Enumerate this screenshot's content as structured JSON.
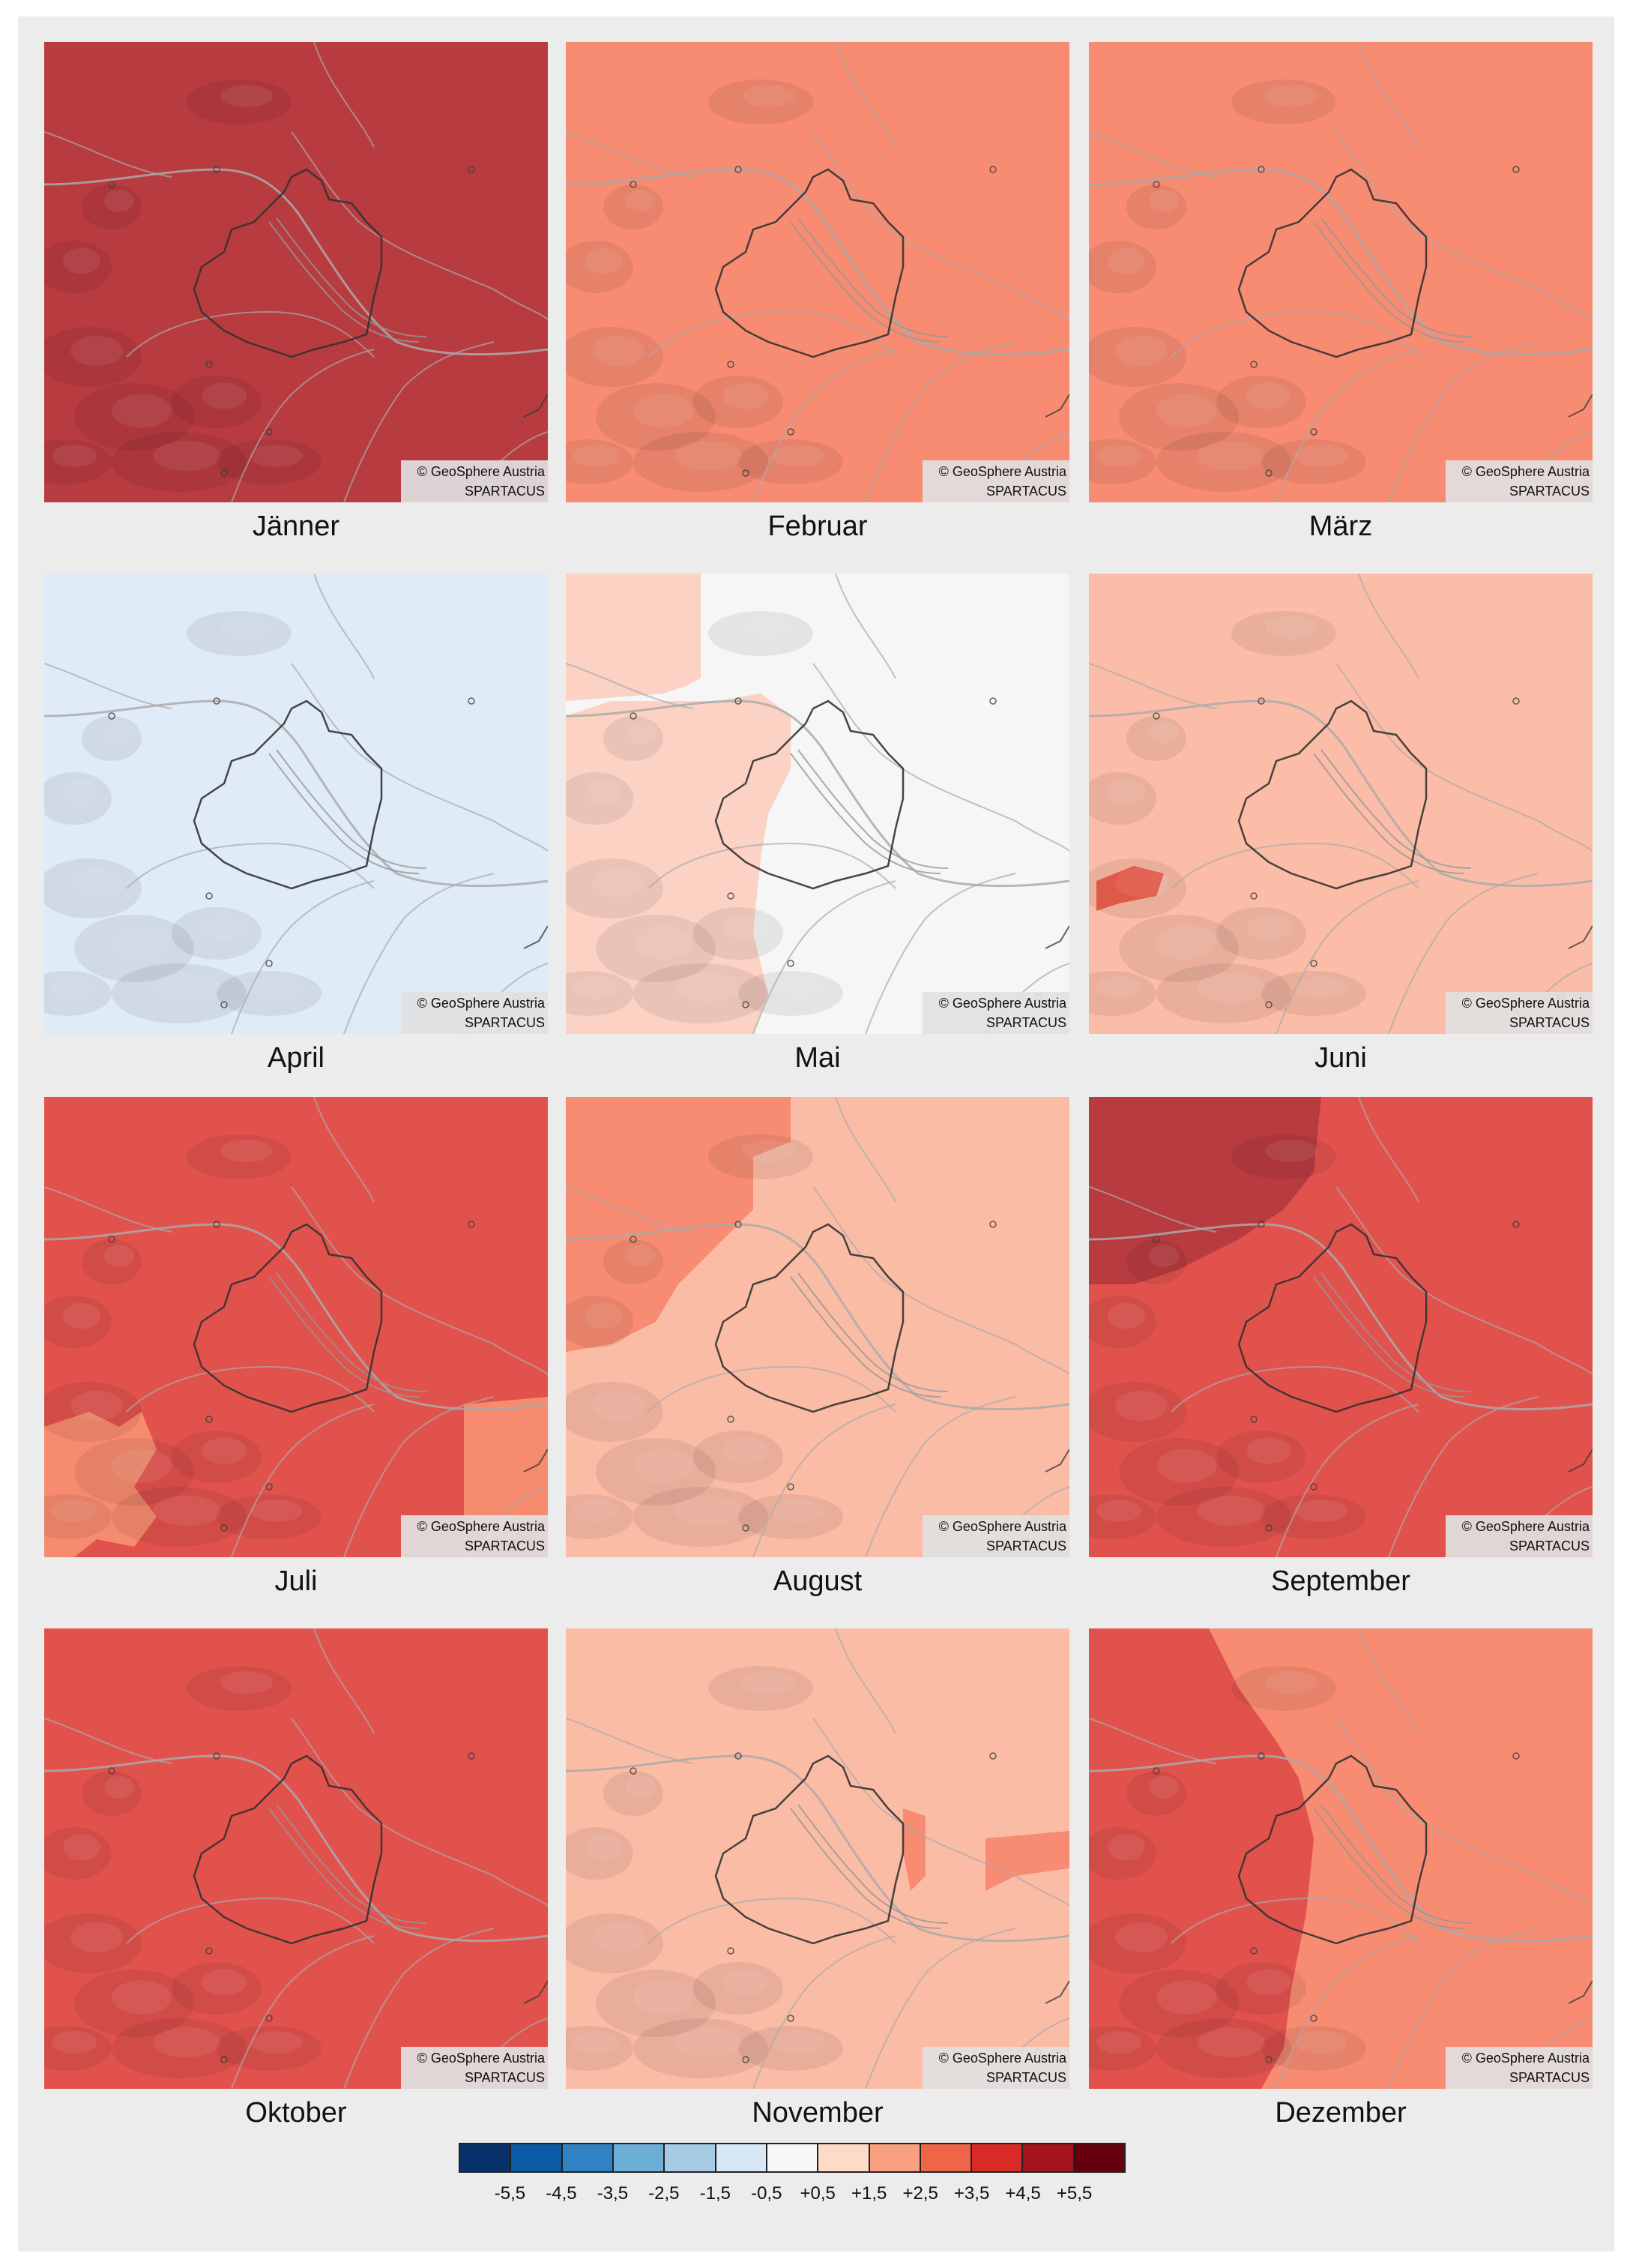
{
  "credit": {
    "line1": "© GeoSphere Austria",
    "line2": "SPARTACUS"
  },
  "panels": [
    {
      "month": "Jänner",
      "color": "#b83b40"
    },
    {
      "month": "Februar",
      "color": "#f88c72"
    },
    {
      "month": "März",
      "color": "#f88c72"
    },
    {
      "month": "April",
      "color": "#dfebf7"
    },
    {
      "month": "Mai",
      "color": "#f6f6f6",
      "patch_color": "#fbd2c3"
    },
    {
      "month": "Juni",
      "color": "#fbbda7",
      "patch_color": "#f0604e"
    },
    {
      "month": "Juli",
      "color": "#e2524d",
      "patch_color": "#f78b6f"
    },
    {
      "month": "August",
      "color": "#fbbca6",
      "patch_color": "#f88c72"
    },
    {
      "month": "September",
      "color": "#e2524d",
      "patch_color": "#b83b40"
    },
    {
      "month": "Oktober",
      "color": "#e2524d"
    },
    {
      "month": "November",
      "color": "#fbbca6",
      "patch_color": "#f88c72"
    },
    {
      "month": "Dezember",
      "color": "#f88c72",
      "patch_color": "#e2524d"
    }
  ],
  "legend": {
    "colors": [
      "#08306b",
      "#0c5aa6",
      "#3282c3",
      "#6baed6",
      "#a6cbe4",
      "#d7e7f5",
      "#f7f7f7",
      "#fddbc7",
      "#f8a07f",
      "#ef6547",
      "#d92a25",
      "#a3141c",
      "#67000d"
    ],
    "ticks": [
      "-5,5",
      "-4,5",
      "-3,5",
      "-2,5",
      "-1,5",
      "-0,5",
      "+0,5",
      "+1,5",
      "+2,5",
      "+3,5",
      "+4,5",
      "+5,5"
    ]
  }
}
